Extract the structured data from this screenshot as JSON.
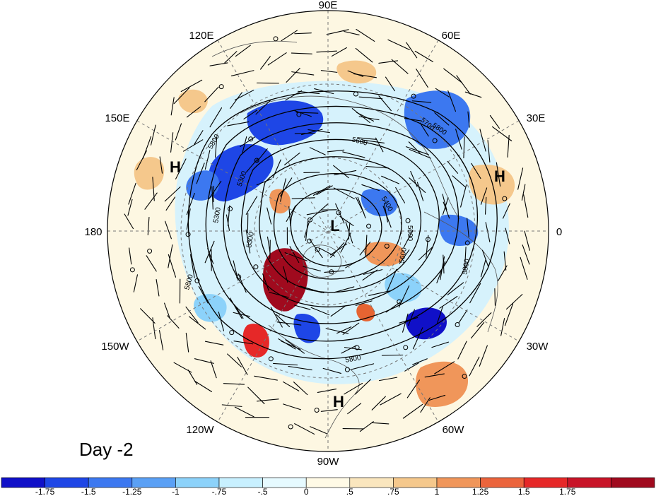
{
  "title": "Day -2",
  "longitude_labels": [
    "90E",
    "60E",
    "30E",
    "0",
    "30W",
    "60W",
    "90W",
    "120W",
    "150W",
    "180",
    "150E",
    "120E"
  ],
  "pressure_systems": [
    {
      "id": "H-west",
      "label": "H"
    },
    {
      "id": "L-pole",
      "label": "L"
    },
    {
      "id": "H-east",
      "label": "H"
    },
    {
      "id": "H-south",
      "label": "H"
    }
  ],
  "contour_labels": [
    "5800",
    "5600",
    "5300",
    "5300",
    "5300",
    "5800",
    "5700",
    "5600",
    "5800",
    "5800",
    "5400",
    "5600",
    "5800"
  ],
  "colorbar": {
    "colors": [
      "#1010c8",
      "#1e46e6",
      "#3c78f0",
      "#5aa0f5",
      "#8cd2fa",
      "#c8f0ff",
      "#e6faff",
      "#fffae6",
      "#fae6be",
      "#f5c88c",
      "#f0965a",
      "#eb643c",
      "#e62828",
      "#c81428",
      "#a00a1e"
    ],
    "tick_labels": [
      "-1.75",
      "-1.5",
      "-1.25",
      "-1",
      "-.75",
      "-.5",
      "0",
      ".5",
      ".75",
      "1",
      "1.25",
      "1.5",
      "1.75"
    ]
  },
  "anomaly_patches": [
    {
      "color": "#1e46e6"
    },
    {
      "color": "#1e46e6"
    },
    {
      "color": "#3c78f0"
    },
    {
      "color": "#1010c8"
    },
    {
      "color": "#1e46e6"
    },
    {
      "color": "#3c78f0"
    },
    {
      "color": "#3c78f0"
    },
    {
      "color": "#3c78f0"
    },
    {
      "color": "#a00a1e"
    },
    {
      "color": "#f0965a"
    },
    {
      "color": "#f0965a"
    },
    {
      "color": "#e62828"
    },
    {
      "color": "#f0965a"
    },
    {
      "color": "#f5c88c"
    },
    {
      "color": "#f5c88c"
    },
    {
      "color": "#f5c88c"
    },
    {
      "color": "#8cd2fa"
    },
    {
      "color": "#8cd2fa"
    },
    {
      "color": "#e66432"
    },
    {
      "color": "#f5c88c"
    }
  ]
}
